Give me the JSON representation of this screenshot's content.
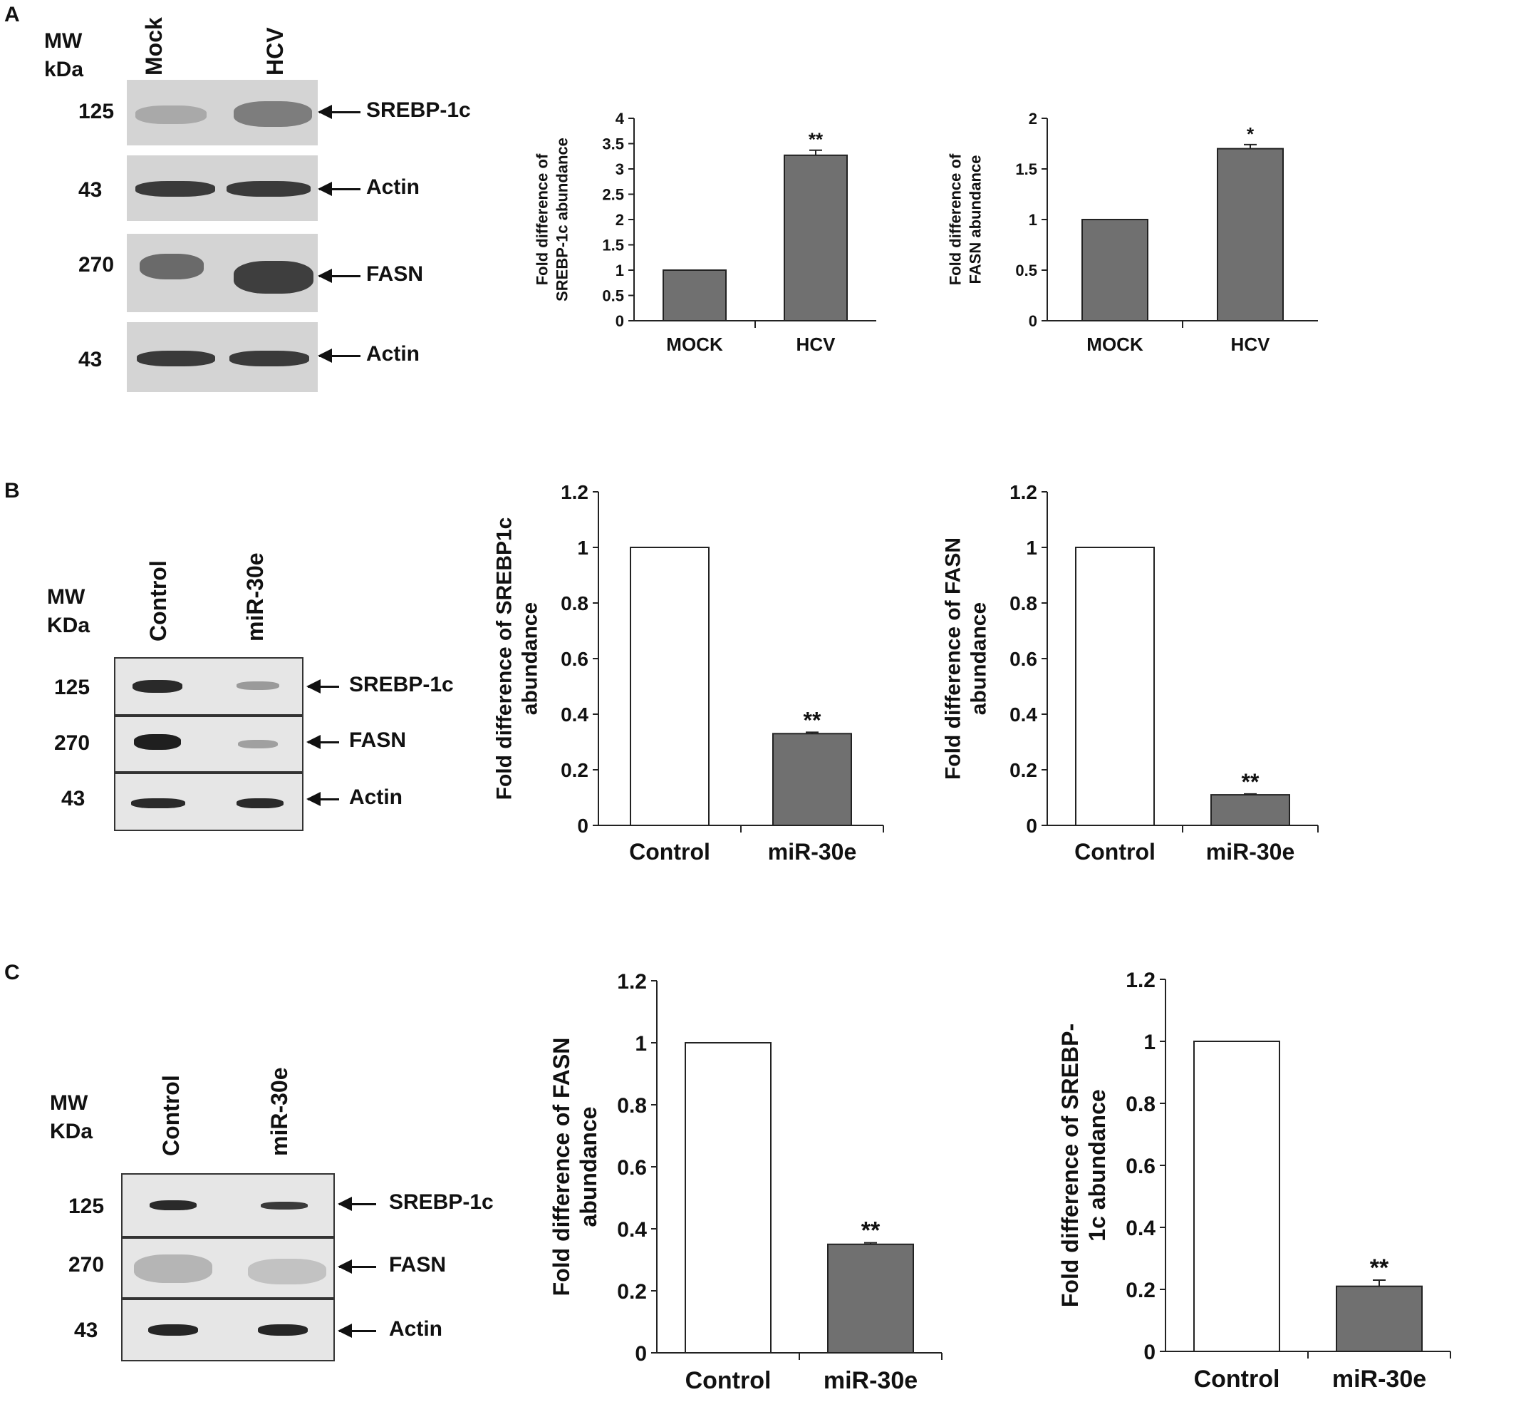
{
  "panels": {
    "A": {
      "letter": "A",
      "mw_line1": "MW",
      "mw_line2": "kDa",
      "lanes": [
        "Mock",
        "HCV"
      ],
      "rows": [
        {
          "kda": "125",
          "protein": "SREBP-1c"
        },
        {
          "kda": "43",
          "protein": "Actin"
        },
        {
          "kda": "270",
          "protein": "FASN"
        },
        {
          "kda": "43",
          "protein": "Actin"
        }
      ]
    },
    "B": {
      "letter": "B",
      "mw_line1": "MW",
      "mw_line2": "KDa",
      "lanes": [
        "Control",
        "miR-30e"
      ],
      "rows": [
        {
          "kda": "125",
          "protein": "SREBP-1c"
        },
        {
          "kda": "270",
          "protein": "FASN"
        },
        {
          "kda": "43",
          "protein": "Actin"
        }
      ]
    },
    "C": {
      "letter": "C",
      "mw_line1": "MW",
      "mw_line2": "KDa",
      "lanes": [
        "Control",
        "miR-30e"
      ],
      "rows": [
        {
          "kda": "125",
          "protein": "SREBP-1c"
        },
        {
          "kda": "270",
          "protein": "FASN"
        },
        {
          "kda": "43",
          "protein": "Actin"
        }
      ]
    }
  },
  "colors": {
    "filled_bar": "#707070",
    "open_bar": "#ffffff",
    "axis": "#222222"
  },
  "chart_data": [
    {
      "type": "bar",
      "panel": "A",
      "categories": [
        "MOCK",
        "HCV"
      ],
      "values": [
        1,
        3.27
      ],
      "errors": [
        0,
        0.1
      ],
      "significance": [
        "",
        "**"
      ],
      "fills": [
        "filled",
        "filled"
      ],
      "ylabel": "Fold difference of SREBP-1c abundance",
      "ylim": [
        0,
        4
      ],
      "yticks": [
        "0",
        "0.5",
        "1",
        "1.5",
        "2",
        "2.5",
        "3",
        "3.5",
        "4"
      ]
    },
    {
      "type": "bar",
      "panel": "A",
      "categories": [
        "MOCK",
        "HCV"
      ],
      "values": [
        1,
        1.7
      ],
      "errors": [
        0,
        0.04
      ],
      "significance": [
        "",
        "*"
      ],
      "fills": [
        "filled",
        "filled"
      ],
      "ylabel": "Fold difference of FASN abundance",
      "ylim": [
        0,
        2
      ],
      "yticks": [
        "0",
        "0.5",
        "1",
        "1.5",
        "2"
      ]
    },
    {
      "type": "bar",
      "panel": "B",
      "categories": [
        "Control",
        "miR-30e"
      ],
      "values": [
        1,
        0.33
      ],
      "errors": [
        0,
        0.005
      ],
      "significance": [
        "",
        "**"
      ],
      "fills": [
        "open",
        "filled"
      ],
      "ylabel": "Fold difference of SREBP1c abundance",
      "ylim": [
        0,
        1.2
      ],
      "yticks": [
        "0",
        "0.2",
        "0.4",
        "0.6",
        "0.8",
        "1",
        "1.2"
      ]
    },
    {
      "type": "bar",
      "panel": "B",
      "categories": [
        "Control",
        "miR-30e"
      ],
      "values": [
        1,
        0.11
      ],
      "errors": [
        0,
        0.003
      ],
      "significance": [
        "",
        "**"
      ],
      "fills": [
        "open",
        "filled"
      ],
      "ylabel": "Fold difference of FASN abundance",
      "ylim": [
        0,
        1.2
      ],
      "yticks": [
        "0",
        "0.2",
        "0.4",
        "0.6",
        "0.8",
        "1",
        "1.2"
      ]
    },
    {
      "type": "bar",
      "panel": "C",
      "categories": [
        "Control",
        "miR-30e"
      ],
      "values": [
        1,
        0.35
      ],
      "errors": [
        0,
        0.005
      ],
      "significance": [
        "",
        "**"
      ],
      "fills": [
        "open",
        "filled"
      ],
      "ylabel": "Fold difference of FASN abundance",
      "ylim": [
        0,
        1.2
      ],
      "yticks": [
        "0",
        "0.2",
        "0.4",
        "0.6",
        "0.8",
        "1",
        "1.2"
      ]
    },
    {
      "type": "bar",
      "panel": "C",
      "categories": [
        "Control",
        "miR-30e"
      ],
      "values": [
        1,
        0.21
      ],
      "errors": [
        0,
        0.02
      ],
      "significance": [
        "",
        "**"
      ],
      "fills": [
        "open",
        "filled"
      ],
      "ylabel": "Fold difference of SREBP-1c abundance",
      "ylim": [
        0,
        1.2
      ],
      "yticks": [
        "0",
        "0.2",
        "0.4",
        "0.6",
        "0.8",
        "1",
        "1.2"
      ]
    }
  ]
}
